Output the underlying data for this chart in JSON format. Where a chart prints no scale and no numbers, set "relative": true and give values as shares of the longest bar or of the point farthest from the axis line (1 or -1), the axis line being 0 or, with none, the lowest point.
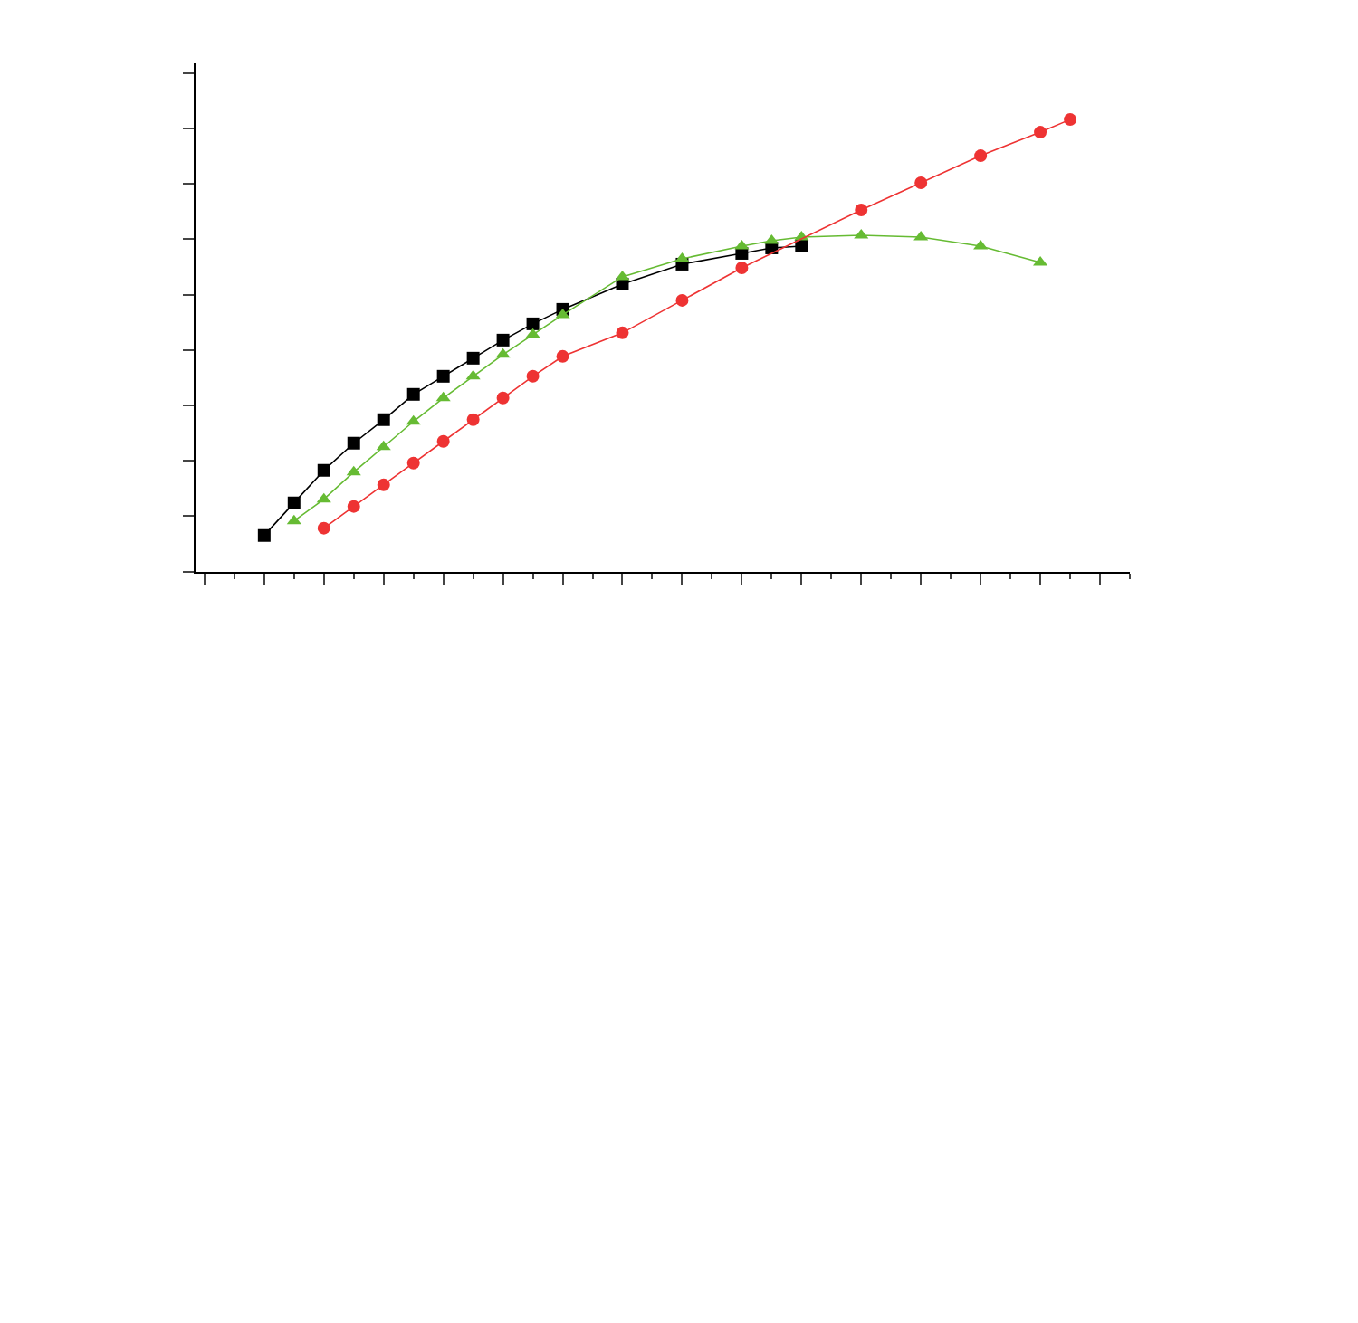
{
  "chart_data": {
    "type": "line",
    "relative": true,
    "categories": [
      null,
      null,
      null,
      null,
      null,
      null,
      null,
      null,
      null,
      null,
      null,
      null,
      null,
      null,
      null,
      null,
      null,
      null,
      null,
      null,
      null,
      null,
      null,
      null,
      null,
      null,
      null,
      null,
      null,
      null,
      null,
      null
    ],
    "series": [
      {
        "color": "#000000",
        "marker": "square",
        "values": [
          null,
          null,
          0.08,
          0.152,
          0.224,
          0.284,
          0.336,
          0.392,
          0.432,
          0.472,
          0.512,
          0.548,
          0.58,
          null,
          0.636,
          null,
          0.68,
          null,
          0.704,
          0.716,
          0.72,
          null,
          null,
          null,
          null,
          null,
          null,
          null,
          null,
          null,
          null,
          null
        ]
      },
      {
        "color": "#66bb33",
        "marker": "triangle",
        "values": [
          null,
          null,
          null,
          0.112,
          0.16,
          0.22,
          0.276,
          0.332,
          0.384,
          0.432,
          0.48,
          0.524,
          0.568,
          null,
          0.652,
          null,
          0.692,
          null,
          0.72,
          0.732,
          0.74,
          null,
          0.744,
          null,
          0.74,
          null,
          0.72,
          null,
          0.684,
          null,
          null,
          null
        ]
      },
      {
        "color": "#ee3333",
        "marker": "circle",
        "values": [
          null,
          null,
          null,
          null,
          0.096,
          0.144,
          0.192,
          0.24,
          0.288,
          0.336,
          0.384,
          0.432,
          0.476,
          null,
          0.528,
          null,
          0.6,
          null,
          0.672,
          null,
          null,
          null,
          0.8,
          null,
          0.86,
          null,
          0.92,
          null,
          0.972,
          1,
          null,
          null
        ]
      }
    ]
  }
}
